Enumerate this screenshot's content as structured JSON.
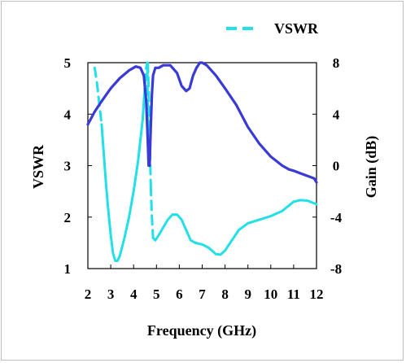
{
  "chart_data": {
    "type": "line",
    "xlabel": "Frequency (GHz)",
    "ylabel_left": "VSWR",
    "ylabel_right": "Gain (dB)",
    "xlim": [
      2,
      12
    ],
    "ylim_left": [
      1,
      5
    ],
    "ylim_right": [
      -8,
      8
    ],
    "x_ticks": [
      2,
      3,
      4,
      5,
      6,
      7,
      8,
      9,
      10,
      11,
      12
    ],
    "y_left_ticks": [
      1,
      2,
      3,
      4,
      5
    ],
    "y_right_ticks": [
      -8,
      -4,
      0,
      4,
      8
    ],
    "grid": false,
    "legend_position": "top-right",
    "series": [
      {
        "name": "VSWR",
        "axis": "left",
        "color": "#22e0e6",
        "style": "dashed",
        "x": [
          2.3,
          2.4,
          2.5,
          2.6
        ],
        "y": [
          4.9,
          4.6,
          4.2,
          3.8
        ]
      },
      {
        "axis": "left",
        "color": "#22e0e6",
        "style": "solid",
        "x": [
          2.6,
          2.7,
          2.8,
          2.9,
          3.0,
          3.1,
          3.2,
          3.3,
          3.4,
          3.6,
          3.8,
          4.0,
          4.2,
          4.4,
          4.5
        ],
        "y": [
          3.8,
          3.2,
          2.6,
          2.1,
          1.65,
          1.3,
          1.15,
          1.15,
          1.25,
          1.6,
          2.0,
          2.5,
          3.1,
          3.9,
          4.6
        ]
      },
      {
        "axis": "left",
        "color": "#22e0e6",
        "style": "dashed",
        "x": [
          4.5,
          4.55,
          4.6,
          4.62,
          4.64
        ],
        "y": [
          4.6,
          4.9,
          5.0,
          4.0,
          3.2
        ]
      },
      {
        "axis": "left",
        "color": "#22e0e6",
        "style": "dashed",
        "x": [
          4.62,
          4.66,
          4.7,
          4.75
        ],
        "y": [
          5.0,
          4.5,
          3.6,
          2.6
        ]
      },
      {
        "axis": "left",
        "color": "#22e0e6",
        "style": "dashed",
        "x": [
          4.75,
          4.8,
          4.85
        ],
        "y": [
          2.6,
          2.0,
          1.6
        ]
      },
      {
        "axis": "left",
        "color": "#22e0e6",
        "style": "solid",
        "x": [
          4.85,
          4.95,
          5.1,
          5.3,
          5.5,
          5.7,
          5.9,
          6.1,
          6.3,
          6.5,
          6.7,
          7.0,
          7.3,
          7.6,
          7.8,
          8.0,
          8.3,
          8.6,
          9.0,
          9.5,
          10.0,
          10.5,
          11.0,
          11.3,
          11.6,
          12.0
        ],
        "y": [
          1.6,
          1.55,
          1.65,
          1.8,
          1.95,
          2.05,
          2.05,
          1.95,
          1.75,
          1.55,
          1.5,
          1.47,
          1.4,
          1.28,
          1.27,
          1.35,
          1.55,
          1.75,
          1.88,
          1.95,
          2.02,
          2.12,
          2.3,
          2.33,
          2.32,
          2.25
        ]
      },
      {
        "axis": "right",
        "color": "#3a3ad6",
        "style": "solid",
        "x": [
          2.0,
          2.3,
          2.6,
          3.0,
          3.4,
          3.8,
          4.1,
          4.3,
          4.45,
          4.55,
          4.62,
          4.66,
          4.7,
          4.75,
          4.8,
          4.85,
          4.95,
          5.1,
          5.3,
          5.6,
          5.9,
          6.1,
          6.3,
          6.45,
          6.6,
          6.75,
          6.9,
          7.0,
          7.2,
          7.6,
          8.0,
          8.5,
          9.0,
          9.5,
          10.0,
          10.5,
          10.8,
          11.0,
          11.3,
          11.6,
          11.9,
          12.0
        ],
        "y": [
          3.2,
          4.2,
          5.0,
          6.0,
          6.8,
          7.4,
          7.7,
          7.6,
          7.0,
          5.0,
          2.0,
          0.0,
          0.0,
          3.0,
          5.5,
          7.0,
          7.6,
          7.6,
          7.8,
          7.8,
          7.2,
          6.2,
          5.8,
          6.0,
          7.0,
          7.6,
          8.0,
          8.0,
          7.8,
          7.0,
          6.0,
          4.7,
          3.0,
          1.7,
          0.7,
          0.0,
          -0.3,
          -0.4,
          -0.6,
          -0.8,
          -1.0,
          -1.3
        ]
      }
    ]
  }
}
